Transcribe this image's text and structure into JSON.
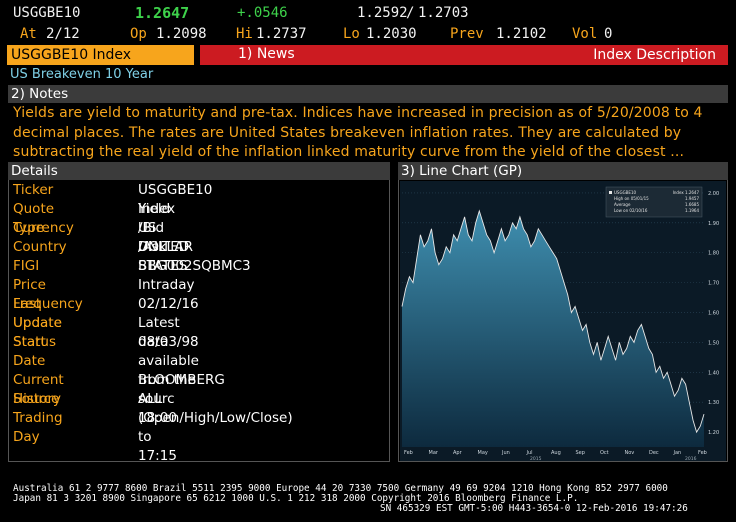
{
  "quote": {
    "ticker": "USGGBE10",
    "last": "1.2647",
    "change": "+.0546",
    "bid": "1.2592",
    "ask": "1.2703",
    "at_label": "At",
    "at_value": "2/12",
    "open_label": "Op",
    "open_value": "1.2098",
    "high_label": "Hi",
    "high_value": "1.2737",
    "low_label": "Lo",
    "low_value": "1.2030",
    "prev_label": "Prev",
    "prev_value": "1.2102",
    "vol_label": "Vol",
    "vol_value": "0"
  },
  "tabs": {
    "ticker_tab": "USGGBE10 Index",
    "news_tab": "1) News",
    "desc_tab": "Index Description"
  },
  "title": "US Breakeven 10 Year",
  "notes": {
    "header": "2) Notes",
    "line1": "Yields are yield to maturity and pre-tax. Indices have increased in precision as of 5/20/2008 to 4",
    "line2": "decimal places. The rates are United States breakeven inflation rates. They are calculated by",
    "line3": "subtracting the real yield of the inflation linked maturity curve from the yield of the closest ..."
  },
  "details": {
    "header": "Details",
    "rows": [
      {
        "label": "Ticker",
        "value": "USGGBE10  Index"
      },
      {
        "label": "Quote Type",
        "value": "Yield /Bid /Ask"
      },
      {
        "label": "Currency",
        "value": "US DOLLAR"
      },
      {
        "label": "Country",
        "value": "UNITED STATES"
      },
      {
        "label": "FIGI",
        "value": "BBG002SQBMC3"
      },
      {
        "label": "Price Frequency",
        "value": "Intraday"
      },
      {
        "label": "Last Update",
        "value": "02/12/16"
      },
      {
        "label": "Update Status",
        "value": "Latest data available from the sourc"
      },
      {
        "label": "Start Date",
        "value": "08/03/98"
      },
      {
        "label": "Current Source",
        "value": "BLOOMBERG"
      },
      {
        "label": "History",
        "value": "ALL (Open/High/Low/Close)"
      },
      {
        "label": "Trading Day",
        "value": "18:00 to 17:15"
      }
    ]
  },
  "chart_panel": {
    "header": "3) Line Chart (GP)",
    "legend": {
      "name": "USGGBE10",
      "name_value": "Index 1.2647",
      "high_label": "High on 05/01/15",
      "high_value": "1.9457",
      "avg_label": "Average",
      "avg_value": "1.6685",
      "low_label": "Low on 02/10/16",
      "low_value": "1.1964"
    }
  },
  "chart_data": {
    "type": "area",
    "x_labels": [
      "Feb",
      "Mar",
      "Apr",
      "May",
      "Jun",
      "Jul",
      "Aug",
      "Sep",
      "Oct",
      "Nov",
      "Dec",
      "Jan",
      "Feb"
    ],
    "year_labels": [
      "2015",
      "2016"
    ],
    "y_ticks": [
      "2.00",
      "1.90",
      "1.80",
      "1.70",
      "1.60",
      "1.50",
      "1.40",
      "1.30",
      "1.20"
    ],
    "ylim": [
      1.15,
      2.02
    ],
    "values": [
      1.62,
      1.68,
      1.72,
      1.7,
      1.78,
      1.86,
      1.82,
      1.84,
      1.88,
      1.8,
      1.76,
      1.78,
      1.82,
      1.8,
      1.86,
      1.84,
      1.88,
      1.92,
      1.86,
      1.84,
      1.9,
      1.94,
      1.9,
      1.86,
      1.84,
      1.8,
      1.84,
      1.88,
      1.84,
      1.86,
      1.9,
      1.88,
      1.92,
      1.88,
      1.86,
      1.82,
      1.84,
      1.88,
      1.86,
      1.84,
      1.82,
      1.8,
      1.78,
      1.74,
      1.7,
      1.66,
      1.6,
      1.62,
      1.58,
      1.54,
      1.56,
      1.5,
      1.46,
      1.5,
      1.44,
      1.48,
      1.52,
      1.48,
      1.44,
      1.5,
      1.46,
      1.48,
      1.52,
      1.5,
      1.54,
      1.56,
      1.52,
      1.48,
      1.46,
      1.4,
      1.42,
      1.38,
      1.4,
      1.36,
      1.32,
      1.34,
      1.38,
      1.36,
      1.3,
      1.24,
      1.2,
      1.22,
      1.26
    ],
    "colors": {
      "line": "#e8e8e8",
      "fill_top": "#3f8fb0",
      "fill_bottom": "#0d2a3e"
    }
  },
  "footer": {
    "line1": "Australia 61 2 9777 8600 Brazil 5511 2395 9000 Europe 44 20 7330 7500 Germany 49 69 9204 1210 Hong Kong 852 2977 6000",
    "line2": "Japan 81 3 3201 8900         Singapore 65 6212 1000          U.S. 1 212 318 2000           Copyright 2016 Bloomberg Finance L.P.",
    "line3": "SN 465329 EST  GMT-5:00 H443-3654-0 12-Feb-2016 19:47:26"
  }
}
